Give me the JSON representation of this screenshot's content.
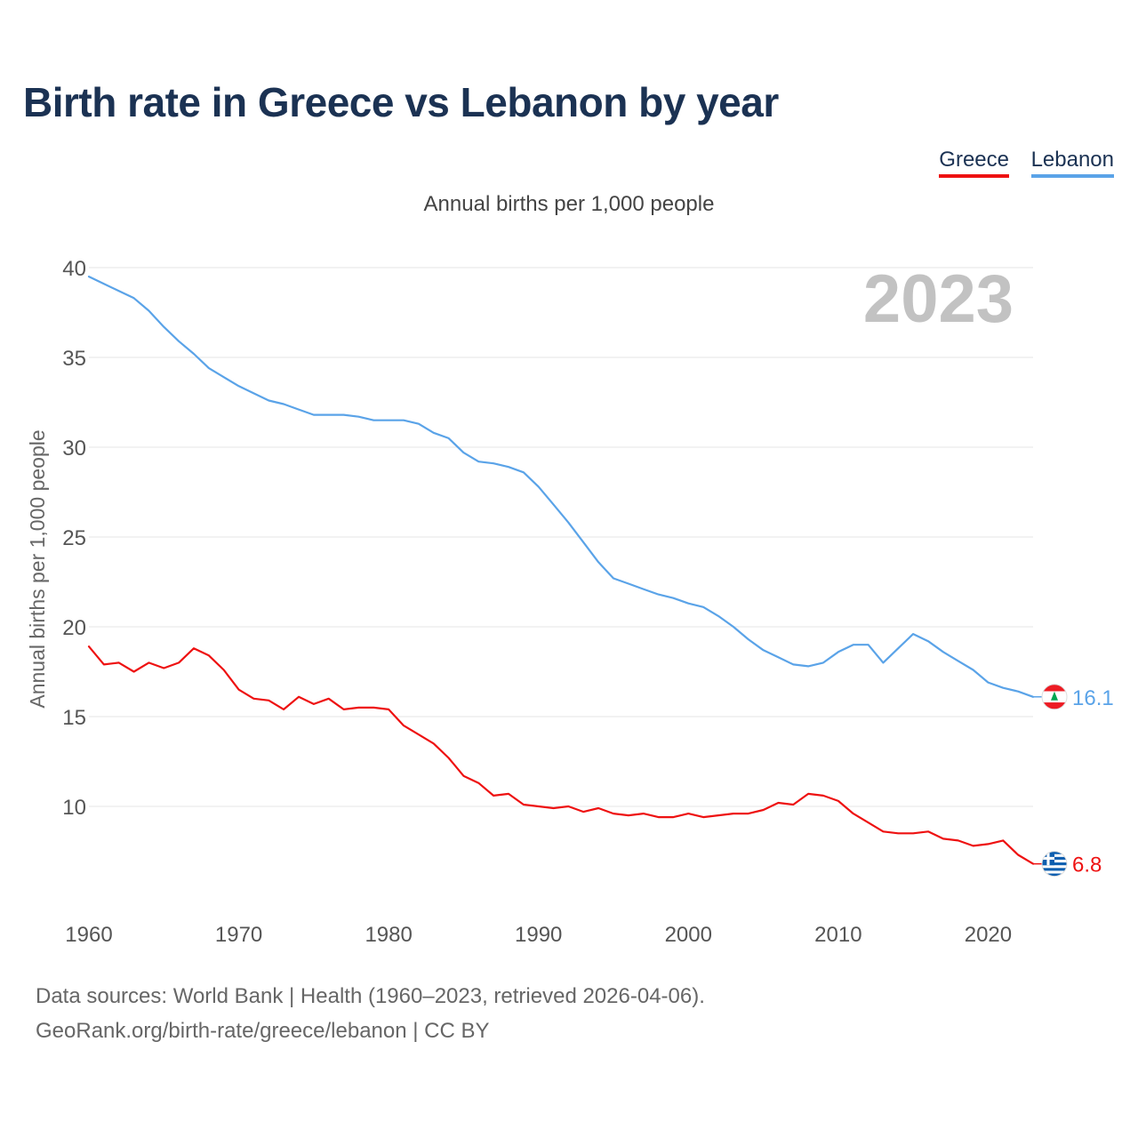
{
  "chart_data": {
    "type": "line",
    "title": "Birth rate in Greece vs Lebanon by year",
    "subtitle": "Annual births per 1,000 people",
    "ylabel": "Annual births per 1,000 people",
    "xlabel": "",
    "year_watermark": "2023",
    "xlim": [
      1960,
      2023
    ],
    "ylim": [
      5,
      40
    ],
    "x_ticks": [
      1960,
      1970,
      1980,
      1990,
      2000,
      2010,
      2020
    ],
    "y_ticks": [
      10,
      15,
      20,
      25,
      30,
      35,
      40
    ],
    "grid": true,
    "legend_position": "top-right",
    "series": [
      {
        "name": "Greece",
        "color": "#ee1111",
        "end_label": "6.8",
        "flag": "greece-flag",
        "values": [
          18.9,
          17.9,
          18.0,
          17.5,
          18.0,
          17.7,
          18.0,
          18.8,
          18.4,
          17.6,
          16.5,
          16.0,
          15.9,
          15.4,
          16.1,
          15.7,
          16.0,
          15.4,
          15.5,
          15.5,
          15.4,
          14.5,
          14.0,
          13.5,
          12.7,
          11.7,
          11.3,
          10.6,
          10.7,
          10.1,
          10.0,
          9.9,
          10.0,
          9.7,
          9.9,
          9.6,
          9.5,
          9.6,
          9.4,
          9.4,
          9.6,
          9.4,
          9.5,
          9.6,
          9.6,
          9.8,
          10.2,
          10.1,
          10.7,
          10.6,
          10.3,
          9.6,
          9.1,
          8.6,
          8.5,
          8.5,
          8.6,
          8.2,
          8.1,
          7.8,
          7.9,
          8.1,
          7.3,
          6.8
        ]
      },
      {
        "name": "Lebanon",
        "color": "#5aa3e8",
        "end_label": "16.1",
        "flag": "lebanon-flag",
        "values": [
          39.5,
          39.1,
          38.7,
          38.3,
          37.6,
          36.7,
          35.9,
          35.2,
          34.4,
          33.9,
          33.4,
          33.0,
          32.6,
          32.4,
          32.1,
          31.8,
          31.8,
          31.8,
          31.7,
          31.5,
          31.5,
          31.5,
          31.3,
          30.8,
          30.5,
          29.7,
          29.2,
          29.1,
          28.9,
          28.6,
          27.8,
          26.8,
          25.8,
          24.7,
          23.6,
          22.7,
          22.4,
          22.1,
          21.8,
          21.6,
          21.3,
          21.1,
          20.6,
          20.0,
          19.3,
          18.7,
          18.3,
          17.9,
          17.8,
          18.0,
          18.6,
          19.0,
          19.0,
          18.0,
          18.8,
          19.6,
          19.2,
          18.6,
          18.1,
          17.6,
          16.9,
          16.6,
          16.4,
          16.1
        ]
      }
    ]
  },
  "legend": {
    "greece_label": "Greece",
    "lebanon_label": "Lebanon"
  },
  "sources": {
    "line1": "Data sources: World Bank | Health (1960–2023, retrieved 2026-04-06).",
    "line2": "GeoRank.org/birth-rate/greece/lebanon | CC BY"
  }
}
